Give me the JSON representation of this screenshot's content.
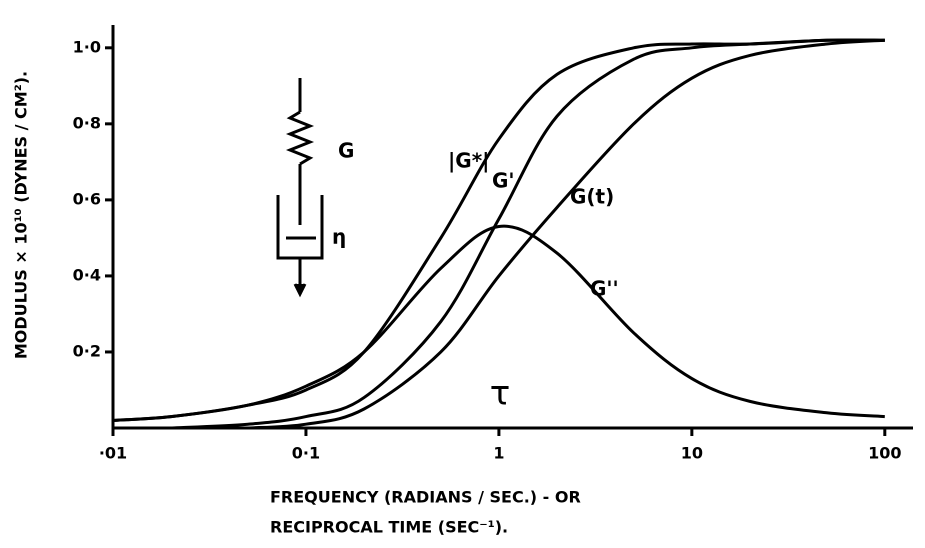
{
  "chart_data": {
    "type": "line",
    "y_label": "MODULUS × 10¹⁰ (DYNES / CM²).",
    "x_label": [
      "FREQUENCY (RADIANS / SEC.) - OR",
      "RECIPROCAL TIME (SEC⁻¹)."
    ],
    "annotations": [
      "τ",
      "G",
      "η"
    ],
    "log_x": true,
    "x": [
      0.01,
      0.02,
      0.05,
      0.1,
      0.2,
      0.5,
      1,
      2,
      5,
      10,
      20,
      50,
      100
    ],
    "series": [
      {
        "name": "|G*|",
        "color": "#000000",
        "values": [
          0.02,
          0.03,
          0.06,
          0.1,
          0.2,
          0.5,
          0.76,
          0.93,
          1.0,
          1.01,
          1.01,
          1.02,
          1.02
        ]
      },
      {
        "name": "G'",
        "color": "#000000",
        "values": [
          null,
          0.0,
          0.01,
          0.03,
          0.08,
          0.28,
          0.55,
          0.82,
          0.97,
          1.0,
          1.01,
          1.02,
          1.02
        ]
      },
      {
        "name": "G(t)",
        "color": "#000000",
        "values": [
          null,
          null,
          0.0,
          0.01,
          0.05,
          0.2,
          0.4,
          0.58,
          0.8,
          0.92,
          0.98,
          1.01,
          1.02
        ]
      },
      {
        "name": "G''",
        "color": "#000000",
        "values": [
          0.02,
          0.03,
          0.06,
          0.11,
          0.2,
          0.42,
          0.53,
          0.46,
          0.25,
          0.13,
          0.07,
          0.04,
          0.03
        ]
      }
    ],
    "xlim": [
      0.01,
      140
    ],
    "ylim": [
      0,
      1.06
    ],
    "xticks": [
      {
        "value": 0.01,
        "label": "·01"
      },
      {
        "value": 0.1,
        "label": "0·1"
      },
      1,
      10,
      100
    ],
    "yticks": [
      {
        "value": 0.2,
        "label": "0·2"
      },
      {
        "value": 0.4,
        "label": "0·4"
      },
      {
        "value": 0.6,
        "label": "0·6"
      },
      {
        "value": 0.8,
        "label": "0·8"
      },
      {
        "value": 1.0,
        "label": "1·0"
      }
    ]
  }
}
